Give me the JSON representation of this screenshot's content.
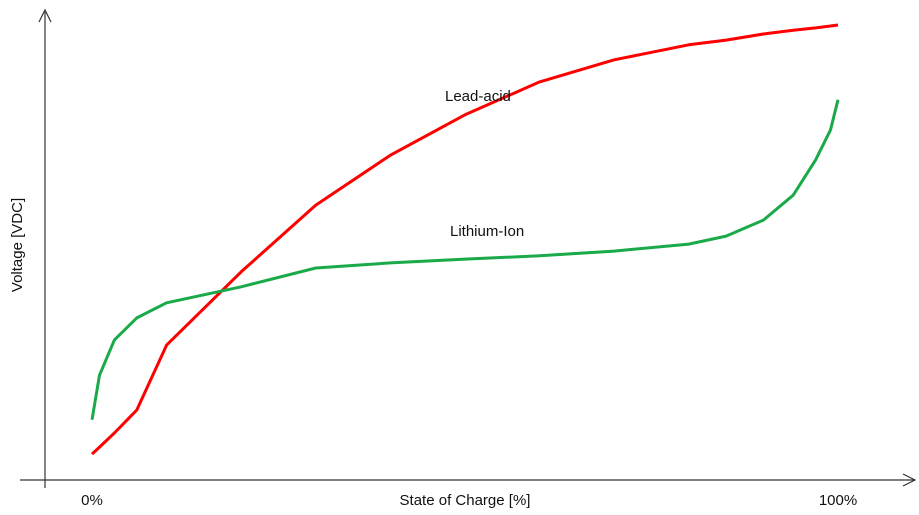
{
  "chart_data": {
    "type": "line",
    "x_label": "State of Charge [%]",
    "y_label": "Voltage [VDC]",
    "x": [
      0,
      1,
      3,
      6,
      10,
      20,
      30,
      40,
      50,
      60,
      70,
      80,
      85,
      90,
      94,
      97,
      99,
      100
    ],
    "series": [
      {
        "name": "Lead-acid",
        "color": "#ff0000",
        "values": [
          5.5,
          7.0,
          10.0,
          14.9,
          28.7,
          44.3,
          58.5,
          69.1,
          77.7,
          84.7,
          89.4,
          92.6,
          93.6,
          94.9,
          95.7,
          96.2,
          96.6,
          96.8
        ]
      },
      {
        "name": "Lithium-Ion",
        "color": "#1aaa4a",
        "values": [
          12.8,
          22.3,
          29.8,
          34.5,
          37.7,
          41.1,
          45.1,
          46.2,
          47.0,
          47.7,
          48.7,
          50.2,
          51.9,
          55.3,
          60.6,
          68.1,
          74.5,
          80.9
        ]
      }
    ],
    "xlim": [
      0,
      100
    ],
    "xticks": [
      {
        "value": 0,
        "label": "0%"
      },
      {
        "value": 100,
        "label": "100%"
      }
    ],
    "ylim": [
      0,
      100
    ]
  }
}
